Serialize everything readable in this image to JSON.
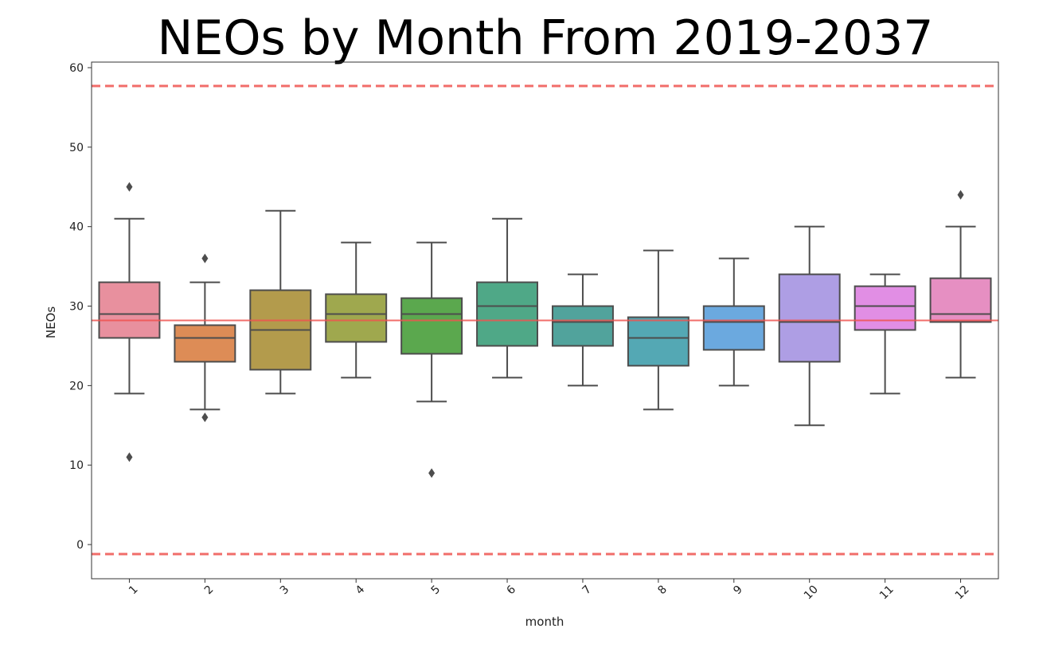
{
  "chart_data": {
    "type": "box",
    "title": "NEOs by Month From 2019-2037",
    "xlabel": "month",
    "ylabel": "NEOs",
    "ylim": [
      -4.3,
      60.7
    ],
    "yticks": [
      0,
      10,
      20,
      30,
      40,
      50,
      60
    ],
    "categories": [
      "1",
      "2",
      "3",
      "4",
      "5",
      "6",
      "7",
      "8",
      "9",
      "10",
      "11",
      "12"
    ],
    "colors": [
      "#e8909e",
      "#dd8c56",
      "#b39b4c",
      "#9fa84e",
      "#5ba84e",
      "#4fa887",
      "#51a39c",
      "#54a8b4",
      "#6ba9df",
      "#ae9ee4",
      "#e18ee4",
      "#e68fc2"
    ],
    "boxes": [
      {
        "category": "1",
        "whisker_low": 19,
        "q1": 26,
        "median": 29,
        "q3": 33,
        "whisker_high": 41,
        "outliers": [
          45,
          11
        ]
      },
      {
        "category": "2",
        "whisker_low": 17,
        "q1": 23,
        "median": 26,
        "q3": 27.6,
        "whisker_high": 33,
        "outliers": [
          36,
          16
        ]
      },
      {
        "category": "3",
        "whisker_low": 19,
        "q1": 22,
        "median": 27,
        "q3": 32,
        "whisker_high": 42,
        "outliers": []
      },
      {
        "category": "4",
        "whisker_low": 21,
        "q1": 25.5,
        "median": 29,
        "q3": 31.5,
        "whisker_high": 38,
        "outliers": []
      },
      {
        "category": "5",
        "whisker_low": 18,
        "q1": 24,
        "median": 29,
        "q3": 31,
        "whisker_high": 38,
        "outliers": [
          9
        ]
      },
      {
        "category": "6",
        "whisker_low": 21,
        "q1": 25,
        "median": 30,
        "q3": 33,
        "whisker_high": 41,
        "outliers": []
      },
      {
        "category": "7",
        "whisker_low": 20,
        "q1": 25,
        "median": 28,
        "q3": 30,
        "whisker_high": 34,
        "outliers": []
      },
      {
        "category": "8",
        "whisker_low": 17,
        "q1": 22.5,
        "median": 26,
        "q3": 28.6,
        "whisker_high": 37,
        "outliers": []
      },
      {
        "category": "9",
        "whisker_low": 20,
        "q1": 24.5,
        "median": 28,
        "q3": 30,
        "whisker_high": 36,
        "outliers": []
      },
      {
        "category": "10",
        "whisker_low": 15,
        "q1": 23,
        "median": 28,
        "q3": 34,
        "whisker_high": 40,
        "outliers": []
      },
      {
        "category": "11",
        "whisker_low": 19,
        "q1": 27,
        "median": 30,
        "q3": 32.5,
        "whisker_high": 34,
        "outliers": []
      },
      {
        "category": "12",
        "whisker_low": 21,
        "q1": 28,
        "median": 29,
        "q3": 33.5,
        "whisker_high": 40,
        "outliers": [
          44
        ]
      }
    ],
    "reference_lines": [
      {
        "value": 28.2,
        "style": "solid",
        "color": "#ef5350"
      },
      {
        "value": 57.7,
        "style": "dashed",
        "color": "#ef5350"
      },
      {
        "value": -1.2,
        "style": "dashed",
        "color": "#ef5350"
      }
    ],
    "grid": false,
    "legend": "none",
    "xtick_rotation": "45deg"
  }
}
